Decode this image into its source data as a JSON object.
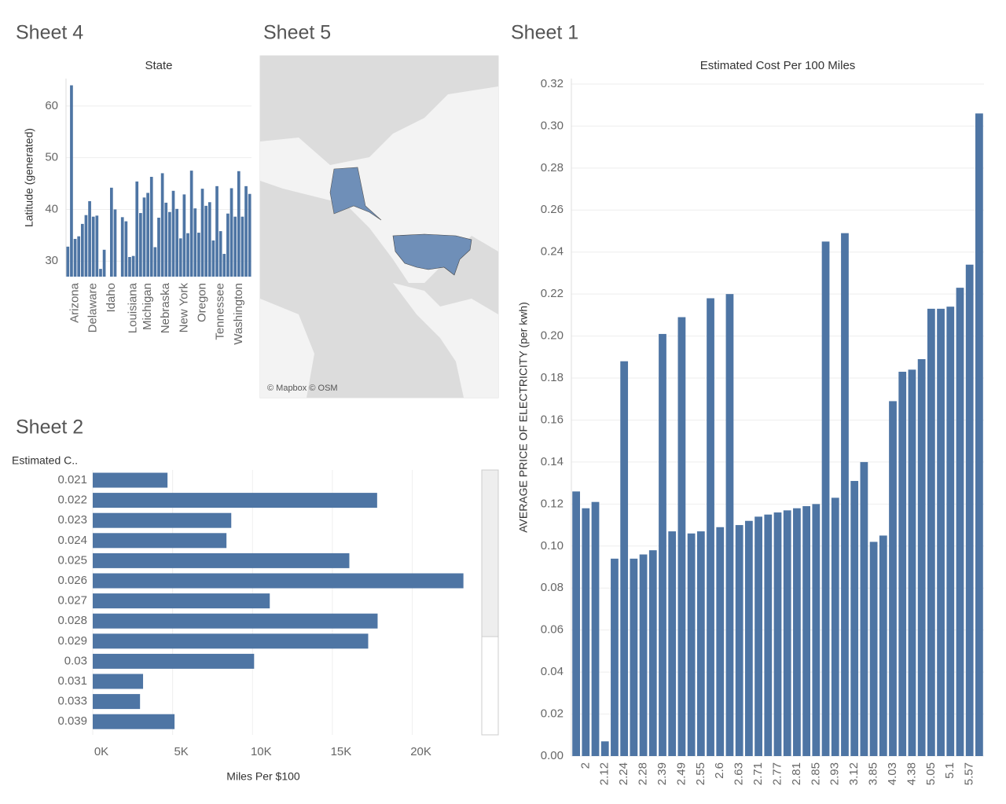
{
  "chart_data": [
    {
      "type": "bar",
      "sheet": "Sheet 4",
      "title": "State",
      "y_label": "Latitude (generated)",
      "color": "#4e75a4",
      "grid": true,
      "categories": [
        null,
        null,
        "Arizona",
        null,
        null,
        null,
        null,
        "Delaware",
        null,
        null,
        null,
        null,
        "Idaho",
        null,
        null,
        null,
        null,
        null,
        "Louisiana",
        null,
        null,
        null,
        "Michigan",
        null,
        null,
        null,
        null,
        "Nebraska",
        null,
        null,
        null,
        null,
        "New York",
        null,
        null,
        null,
        null,
        "Oregon",
        null,
        null,
        null,
        null,
        "Tennessee",
        null,
        null,
        null,
        null,
        "Washington",
        null,
        null,
        null
      ],
      "values": [
        32.8,
        64.0,
        34.3,
        34.8,
        37.2,
        38.9,
        41.6,
        38.6,
        38.8,
        28.5,
        32.2,
        null,
        44.2,
        40.0,
        null,
        38.5,
        37.7,
        30.8,
        31.0,
        45.4,
        39.3,
        42.3,
        43.2,
        46.3,
        32.7,
        38.4,
        47.0,
        41.3,
        39.5,
        43.6,
        40.1,
        34.4,
        42.9,
        35.4,
        47.5,
        40.2,
        35.5,
        44.0,
        40.7,
        41.4,
        34.0,
        44.5,
        35.8,
        31.4,
        39.2,
        44.1,
        38.6,
        47.4,
        38.6,
        44.5,
        43.0
      ],
      "ylim": [
        27,
        65.3
      ],
      "yticks": [
        30,
        40,
        50,
        60
      ]
    },
    {
      "type": "bar",
      "orientation": "horizontal",
      "sheet": "Sheet 2",
      "y_label": "Estimated C..",
      "x_label": "Miles Per $100",
      "color": "#4e75a4",
      "grid": true,
      "categories": [
        "0.021",
        "0.022",
        "0.023",
        "0.024",
        "0.025",
        "0.026",
        "0.027",
        "0.028",
        "0.029",
        "0.03",
        "0.031",
        "0.033",
        "0.039"
      ],
      "values": [
        4680,
        17800,
        8670,
        8370,
        16060,
        23200,
        11080,
        17830,
        17240,
        10100,
        3150,
        2960,
        5120
      ],
      "xlim": [
        0,
        24300
      ],
      "xticks": [
        {
          "value": 0,
          "label": "0K"
        },
        {
          "value": 5000,
          "label": "5K"
        },
        {
          "value": 10000,
          "label": "10K"
        },
        {
          "value": 15000,
          "label": "15K"
        },
        {
          "value": 20000,
          "label": "20K"
        }
      ]
    },
    {
      "type": "bar",
      "sheet": "Sheet 1",
      "title": "Estimated Cost Per 100 Miles",
      "y_label": "AVERAGE PRICE OF ELECTRICITY (per kwh)",
      "color": "#4e75a4",
      "grid": true,
      "categories": [
        null,
        "2",
        null,
        "2.12",
        null,
        "2.24",
        null,
        "2.28",
        null,
        "2.39",
        null,
        "2.49",
        null,
        "2.55",
        null,
        "2.6",
        null,
        "2.63",
        null,
        "2.71",
        null,
        "2.77",
        null,
        "2.81",
        null,
        "2.85",
        null,
        "2.93",
        null,
        "3.12",
        null,
        "3.85",
        null,
        "4.03",
        null,
        "4.38",
        null,
        "5.05",
        null,
        "5.1",
        null,
        "5.57",
        null
      ],
      "values": [
        0.126,
        0.118,
        0.121,
        0.007,
        0.094,
        0.188,
        0.094,
        0.096,
        0.098,
        0.201,
        0.107,
        0.209,
        0.106,
        0.107,
        0.218,
        0.109,
        0.22,
        0.11,
        0.112,
        0.114,
        0.115,
        0.116,
        0.117,
        0.118,
        0.119,
        0.12,
        0.245,
        0.123,
        0.249,
        0.131,
        0.14,
        0.102,
        0.105,
        0.169,
        0.183,
        0.184,
        0.189,
        0.213,
        0.213,
        0.214,
        0.223,
        0.234,
        0.306
      ],
      "ylim": [
        0,
        0.3226
      ],
      "yticks": [
        {
          "value": 0,
          "label": "0.00"
        },
        0.02,
        0.04,
        0.06,
        0.08,
        {
          "value": 0.1,
          "label": "0.10"
        },
        0.12,
        0.14,
        0.16,
        0.18,
        {
          "value": 0.2,
          "label": "0.20"
        },
        0.22,
        0.24,
        0.26,
        0.28,
        {
          "value": 0.3,
          "label": "0.30"
        },
        0.32
      ]
    }
  ],
  "map": {
    "sheet": "Sheet 5",
    "attribution": "© Mapbox © OSM"
  }
}
